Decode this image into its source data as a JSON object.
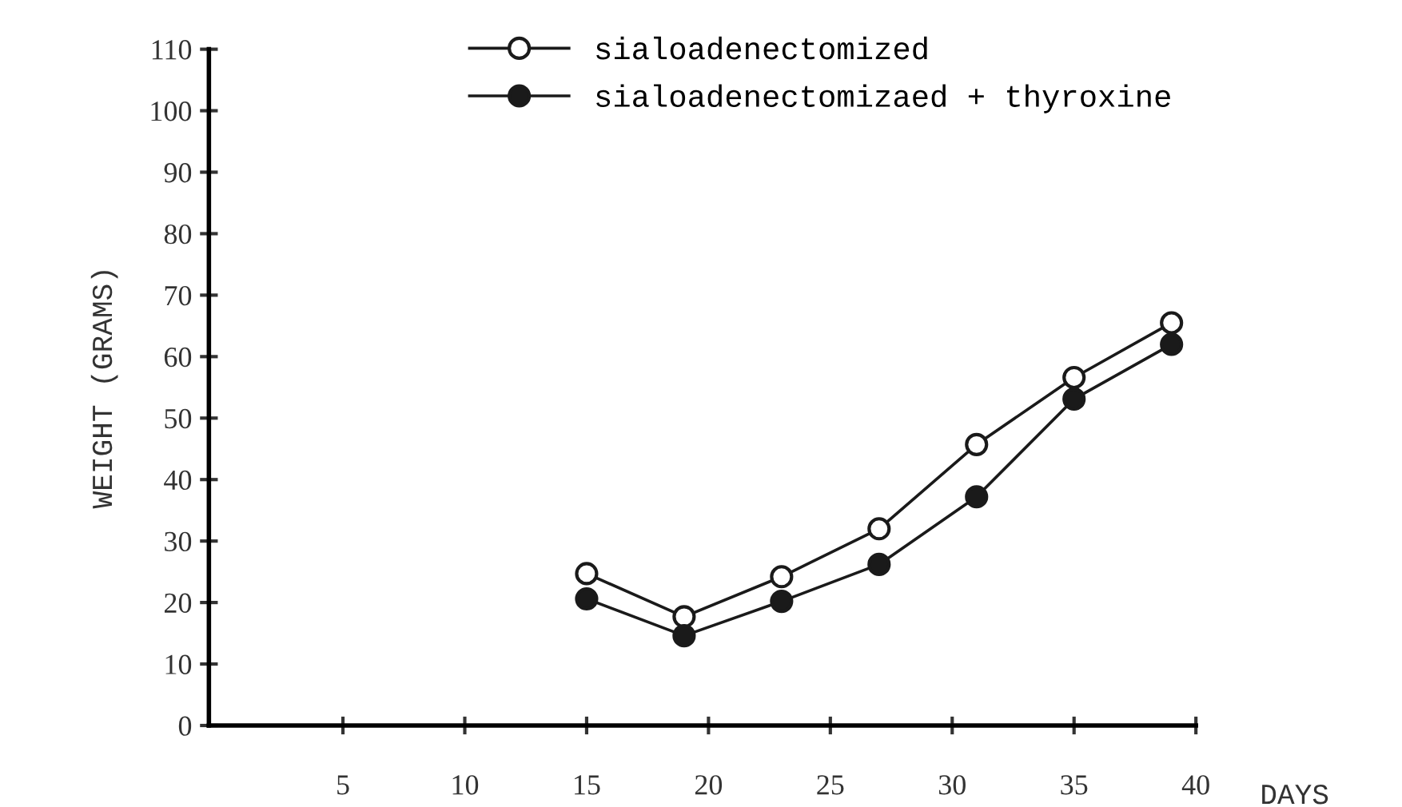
{
  "chart_data": {
    "type": "line",
    "xlabel": "DAYS",
    "ylabel": "WEIGHT (GRAMS)",
    "x": [
      15,
      19,
      23,
      27,
      31,
      35,
      39
    ],
    "series": [
      {
        "name": "sialoadenectomized",
        "color": "#1a1a1a",
        "values": [
          24.7,
          17.7,
          24.2,
          32,
          45.7,
          56.6,
          65.5
        ]
      },
      {
        "name": "sialoadenectomizaed + thyroxine",
        "color": "#1a1a1a",
        "values": [
          20.6,
          14.6,
          20.2,
          26.2,
          37.2,
          53.1,
          62
        ]
      }
    ],
    "xlim": [
      -0.5,
      40
    ],
    "xticks": [
      5,
      10,
      15,
      20,
      25,
      30,
      35,
      40
    ],
    "ylim": [
      0,
      110
    ],
    "yticks": [
      0,
      10,
      20,
      30,
      40,
      50,
      60,
      70,
      80,
      90,
      100,
      110
    ],
    "marker": "circle",
    "line_style": "solid",
    "grid": false,
    "legend": "top"
  }
}
